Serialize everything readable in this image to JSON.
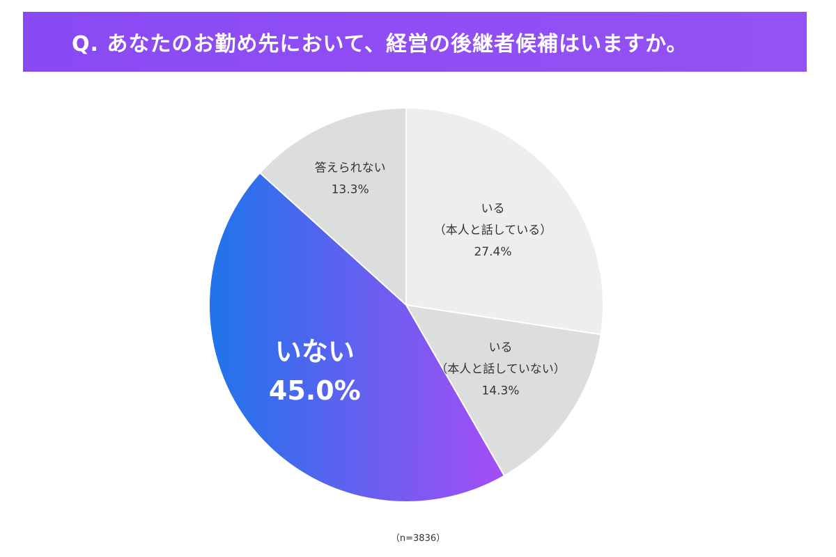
{
  "title": "Q. あなたのお勤め先において、経営の後継者候補はいますか。",
  "note": "（n=3836）",
  "colors": {
    "title_bg": "#8b4bf4",
    "slice_1": "#eeeeee",
    "slice_2": "#dcdddd",
    "slice_3_start": "#1f74ea",
    "slice_3_end": "#a64df6",
    "slice_4": "#dcdddd",
    "border": "#ffffff"
  },
  "chart_data": {
    "type": "pie",
    "title": "Q. あなたのお勤め先において、経営の後継者候補はいますか。",
    "start": "12 o'clock",
    "direction": "clockwise",
    "slices": [
      {
        "name": "いる（本人と話している）",
        "lines": [
          "いる",
          "（本人と話している）"
        ],
        "value": 27.4,
        "value_label": "27.4%",
        "color_key": "slice_1",
        "emphasis": false
      },
      {
        "name": "いる（本人と話していない）",
        "lines": [
          "いる",
          "（本人と話していない）"
        ],
        "value": 14.3,
        "value_label": "14.3%",
        "color_key": "slice_2",
        "emphasis": false
      },
      {
        "name": "いない",
        "lines": [
          "いない"
        ],
        "value": 45.0,
        "value_label": "45.0%",
        "color_key": "slice_3",
        "emphasis": true
      },
      {
        "name": "答えられない",
        "lines": [
          "答えられない"
        ],
        "value": 13.3,
        "value_label": "13.3%",
        "color_key": "slice_4",
        "emphasis": false
      }
    ],
    "total_n": 3836
  }
}
